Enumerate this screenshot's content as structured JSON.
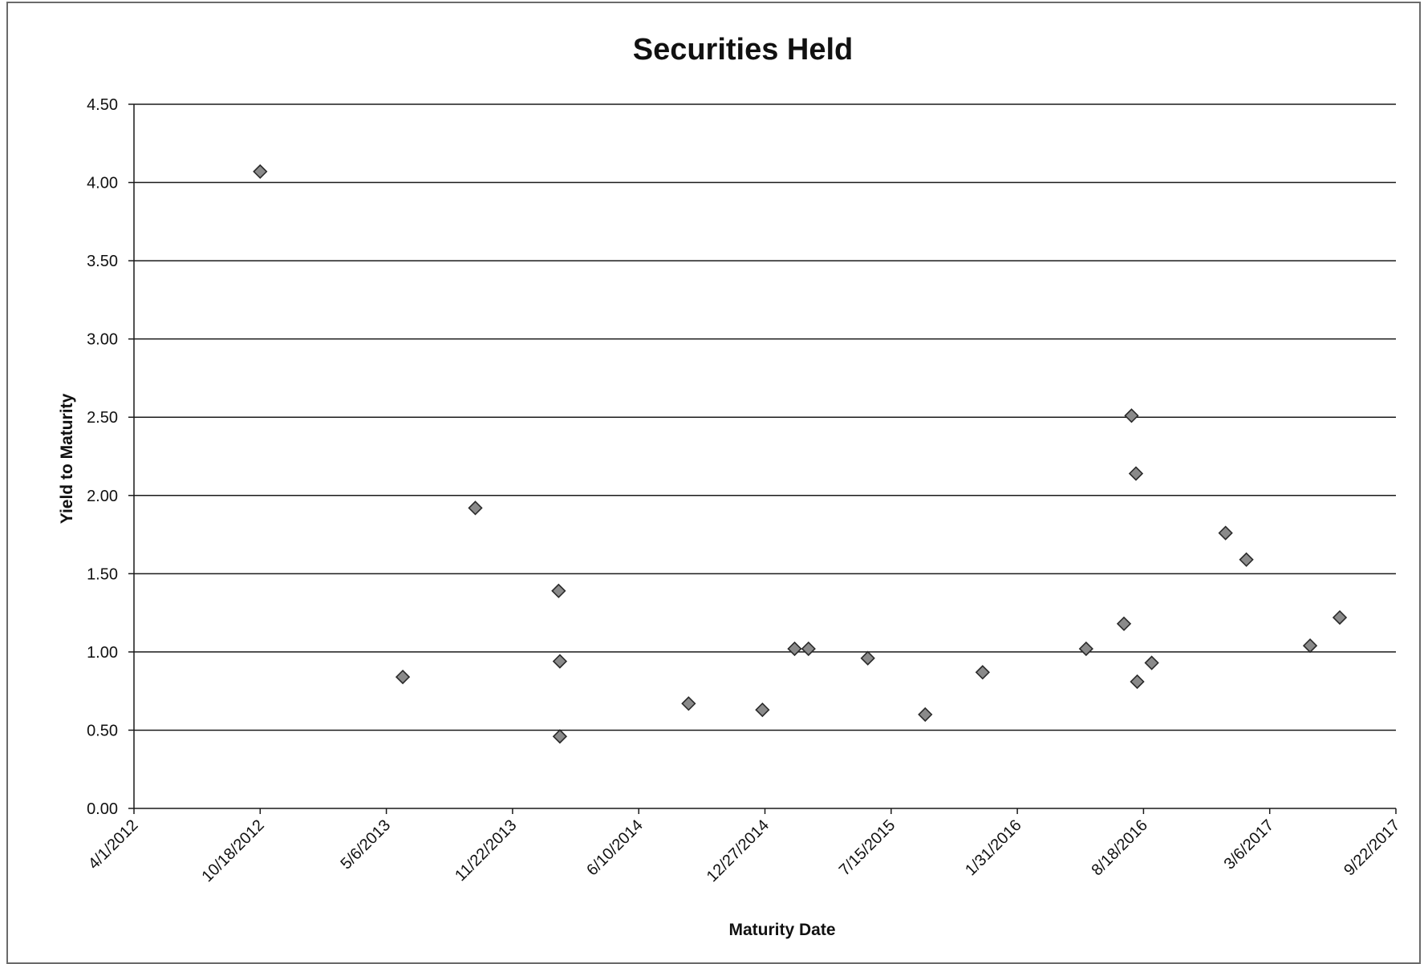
{
  "chart_data": {
    "type": "scatter",
    "title": "Securities Held",
    "xlabel": "Maturity Date",
    "ylabel": "Yield to Maturity",
    "x_axis_type": "date",
    "xlim": [
      "2012-04-01",
      "2017-09-22"
    ],
    "ylim": [
      0,
      4.5
    ],
    "x_ticks": [
      "2012-04-01",
      "2012-10-18",
      "2013-05-06",
      "2013-11-22",
      "2014-06-10",
      "2014-12-27",
      "2015-07-15",
      "2016-01-31",
      "2016-08-18",
      "2017-03-06",
      "2017-09-22"
    ],
    "x_tick_labels": [
      "4/1/2012",
      "10/18/2012",
      "5/6/2013",
      "11/22/2013",
      "6/10/2014",
      "12/27/2014",
      "7/15/2015",
      "1/31/2016",
      "8/18/2016",
      "3/6/2017",
      "9/22/2017"
    ],
    "y_ticks": [
      0,
      0.5,
      1.0,
      1.5,
      2.0,
      2.5,
      3.0,
      3.5,
      4.0,
      4.5
    ],
    "y_tick_labels": [
      "0.00",
      "0.50",
      "1.00",
      "1.50",
      "2.00",
      "2.50",
      "3.00",
      "3.50",
      "4.00",
      "4.50"
    ],
    "grid": "horizontal",
    "legend": "none",
    "marker": "diamond",
    "marker_color": "#8a8a8a",
    "marker_stroke": "#2a2a2a",
    "gridline_color": "#1a1a1a",
    "series": [
      {
        "points": [
          {
            "x": "2012-10-18",
            "y": 4.07
          },
          {
            "x": "2013-06-01",
            "y": 0.84
          },
          {
            "x": "2013-09-24",
            "y": 1.92
          },
          {
            "x": "2014-02-03",
            "y": 1.39
          },
          {
            "x": "2014-02-05",
            "y": 0.94
          },
          {
            "x": "2014-02-05",
            "y": 0.46
          },
          {
            "x": "2014-08-28",
            "y": 0.67
          },
          {
            "x": "2014-12-23",
            "y": 0.63
          },
          {
            "x": "2015-02-12",
            "y": 1.02
          },
          {
            "x": "2015-03-06",
            "y": 1.02
          },
          {
            "x": "2015-06-08",
            "y": 0.96
          },
          {
            "x": "2015-09-07",
            "y": 0.6
          },
          {
            "x": "2015-12-07",
            "y": 0.87
          },
          {
            "x": "2016-05-19",
            "y": 1.02
          },
          {
            "x": "2016-07-18",
            "y": 1.18
          },
          {
            "x": "2016-07-30",
            "y": 2.51
          },
          {
            "x": "2016-08-06",
            "y": 2.14
          },
          {
            "x": "2016-08-08",
            "y": 0.81
          },
          {
            "x": "2016-08-31",
            "y": 0.93
          },
          {
            "x": "2016-12-26",
            "y": 1.76
          },
          {
            "x": "2017-01-28",
            "y": 1.59
          },
          {
            "x": "2017-05-09",
            "y": 1.04
          },
          {
            "x": "2017-06-25",
            "y": 1.22
          }
        ]
      }
    ]
  }
}
